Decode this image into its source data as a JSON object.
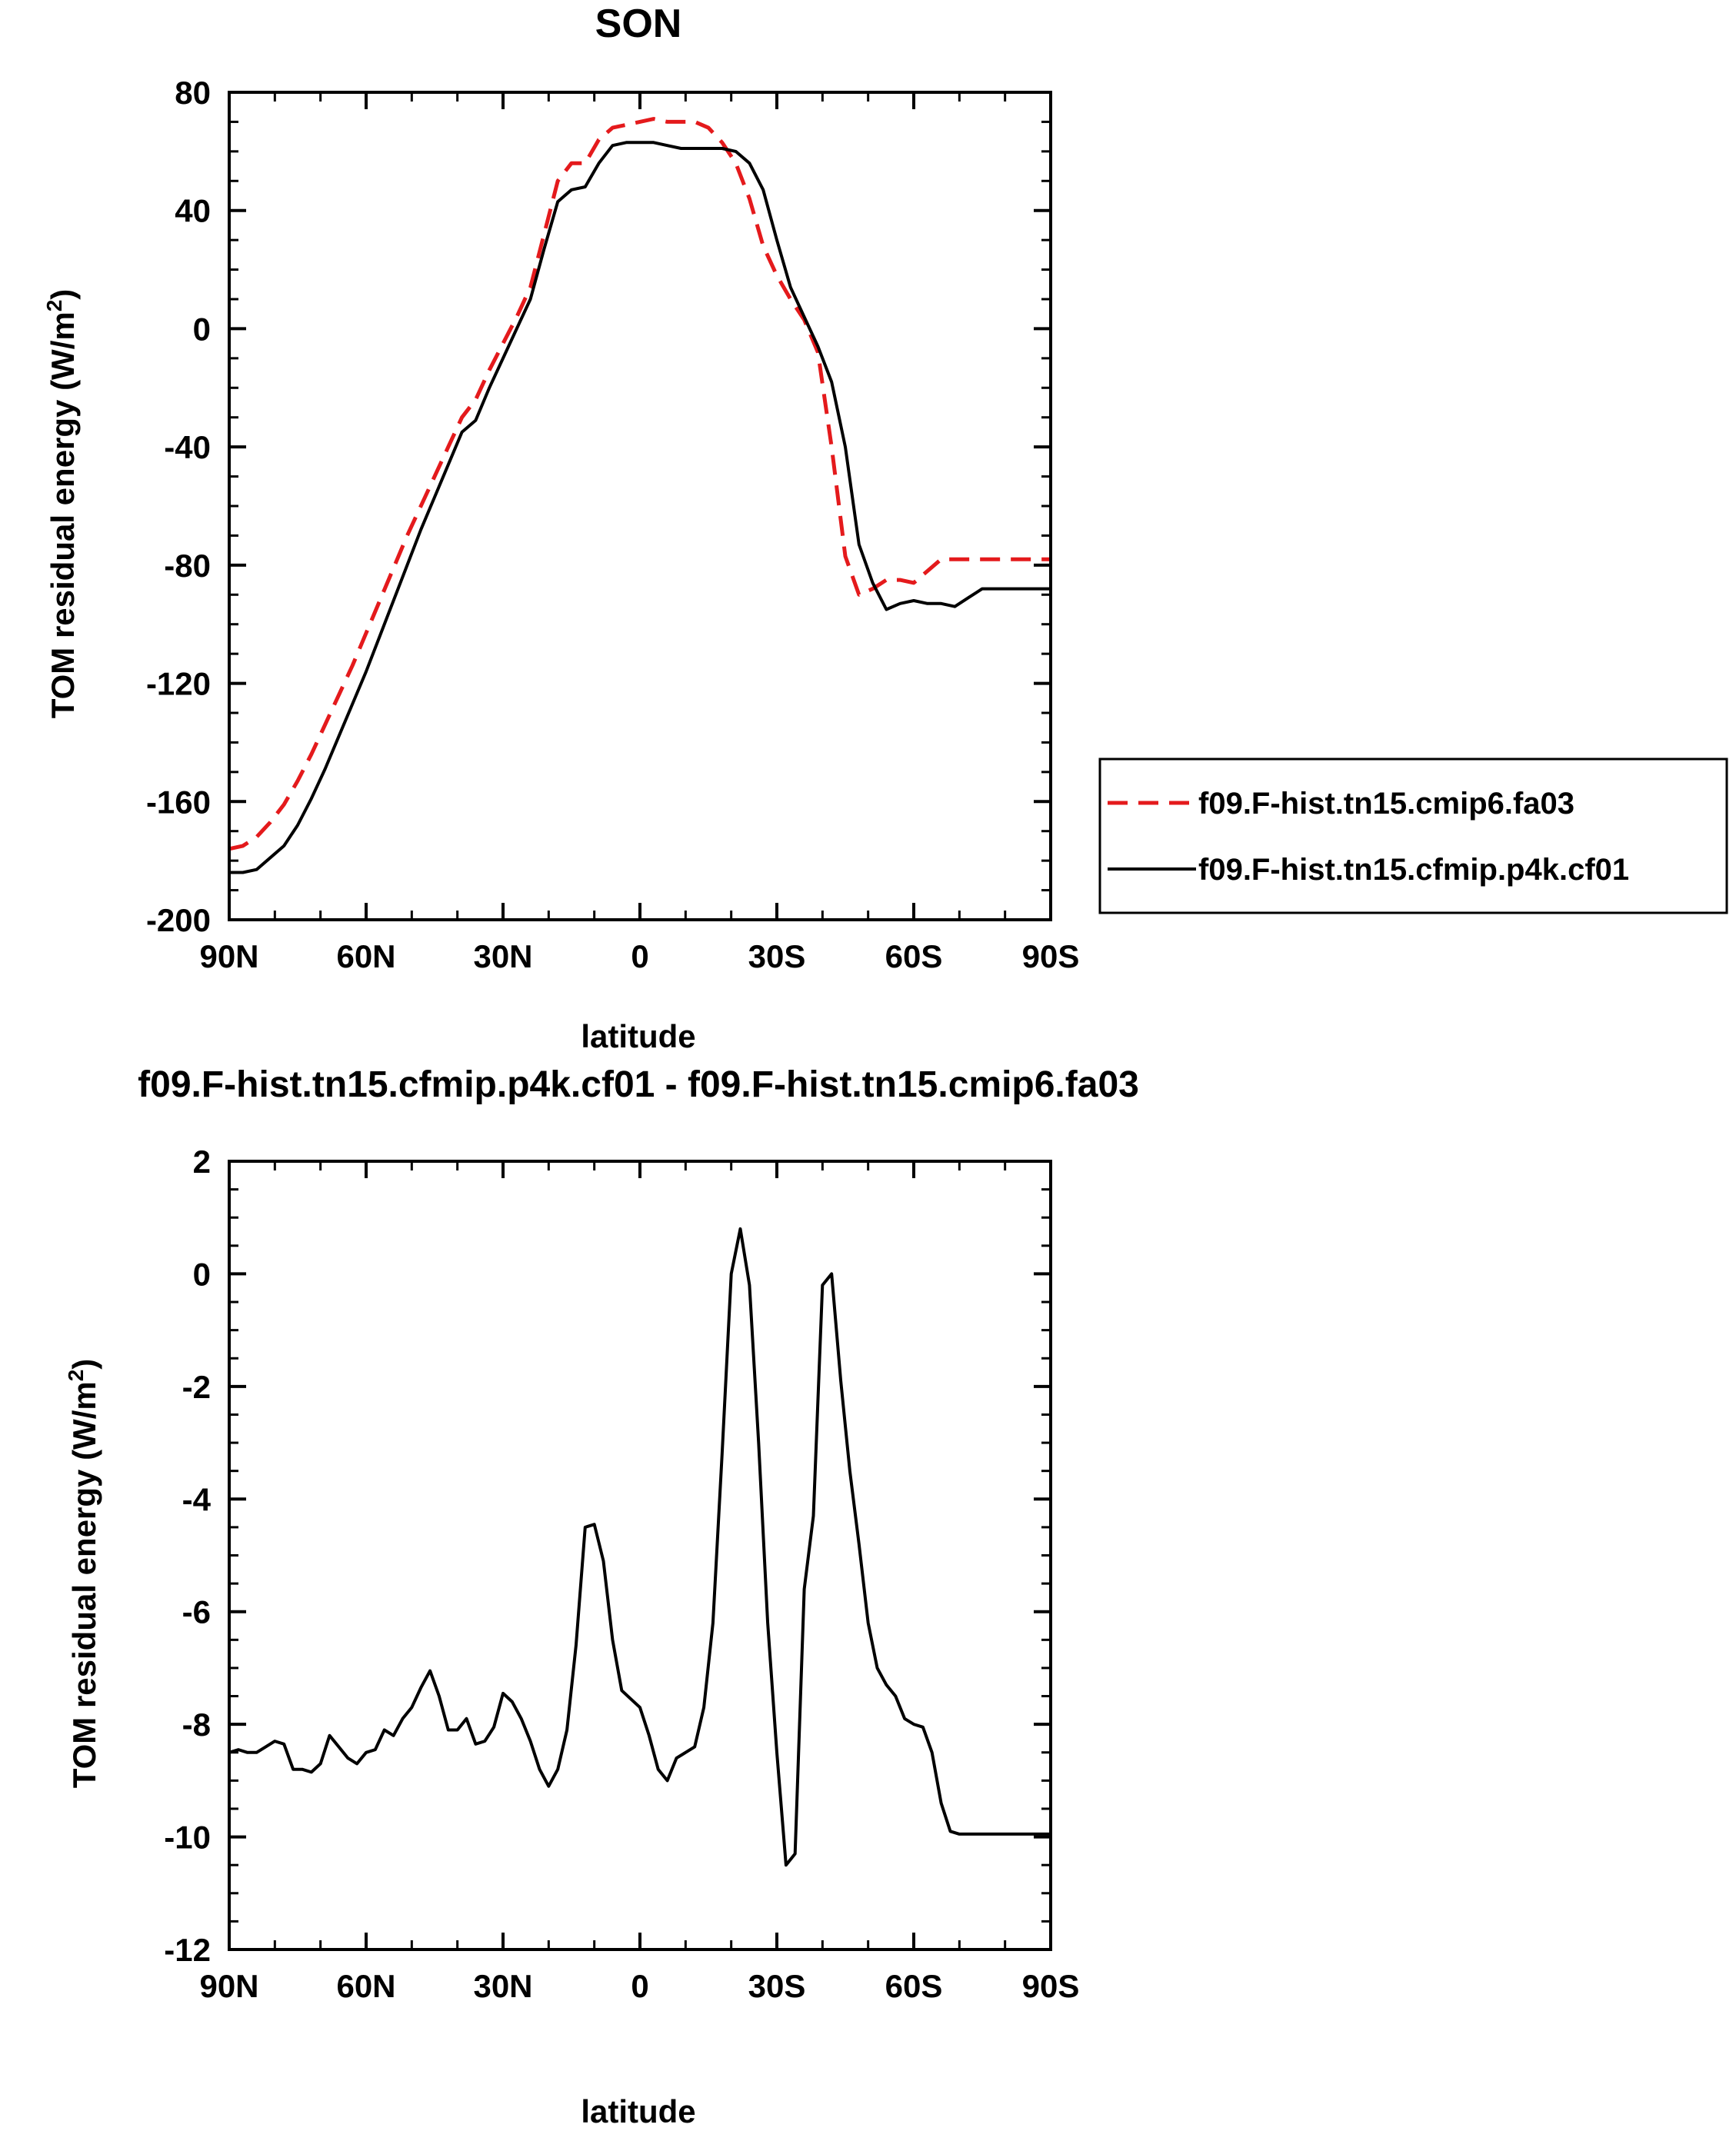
{
  "chart_data": [
    {
      "type": "line",
      "title": "SON",
      "xlabel": "latitude",
      "ylabel": "TOM residual energy (W/m",
      "ylabel_sup": "2",
      "ylabel_close": ")",
      "xlim": [
        90,
        -90
      ],
      "ylim": [
        -200,
        80
      ],
      "xticks": [
        90,
        60,
        30,
        0,
        -30,
        -60,
        -90
      ],
      "xtick_labels": [
        "90N",
        "60N",
        "30N",
        "0",
        "30S",
        "60S",
        "90S"
      ],
      "yticks": [
        80,
        40,
        0,
        -40,
        -80,
        -120,
        -160,
        -200
      ],
      "ytick_labels": [
        "80",
        "40",
        "0",
        "-40",
        "-80",
        "-120",
        "-160",
        "-200"
      ],
      "grid": false,
      "legend_position": "right",
      "series": [
        {
          "name": "f09.F-hist.tn15.cmip6.fa03",
          "color": "#e41a1c",
          "dash": "dashed",
          "x": [
            90,
            87,
            84,
            81,
            78,
            75,
            72,
            69,
            66,
            63,
            60,
            57,
            54,
            51,
            48,
            45,
            42,
            39,
            36,
            33,
            30,
            27,
            24,
            21,
            18,
            15,
            12,
            9,
            6,
            3,
            0,
            -3,
            -6,
            -9,
            -12,
            -15,
            -18,
            -21,
            -24,
            -27,
            -30,
            -33,
            -36,
            -39,
            -42,
            -45,
            -48,
            -51,
            -54,
            -57,
            -60,
            -63,
            -66,
            -69,
            -72,
            -75,
            -78,
            -81,
            -84,
            -87,
            -90
          ],
          "y": [
            -176,
            -175,
            -172,
            -167,
            -161,
            -153,
            -144,
            -134,
            -124,
            -114,
            -103,
            -92,
            -81,
            -70,
            -60,
            -50,
            -40,
            -30,
            -24,
            -14,
            -5,
            4,
            14,
            32,
            50,
            56,
            56,
            64,
            68,
            69,
            70,
            71,
            70,
            70,
            70,
            68,
            63,
            56,
            44,
            28,
            18,
            10,
            3,
            -8,
            -40,
            -77,
            -90,
            -88,
            -85,
            -85,
            -86,
            -82,
            -78,
            -78,
            -78,
            -78,
            -78,
            -78,
            -78,
            -78,
            -78
          ]
        },
        {
          "name": "f09.F-hist.tn15.cfmip.p4k.cf01",
          "color": "#000000",
          "dash": "solid",
          "x": [
            90,
            87,
            84,
            81,
            78,
            75,
            72,
            69,
            66,
            63,
            60,
            57,
            54,
            51,
            48,
            45,
            42,
            39,
            36,
            33,
            30,
            27,
            24,
            21,
            18,
            15,
            12,
            9,
            6,
            3,
            0,
            -3,
            -6,
            -9,
            -12,
            -15,
            -18,
            -21,
            -24,
            -27,
            -30,
            -33,
            -36,
            -39,
            -42,
            -45,
            -48,
            -51,
            -54,
            -57,
            -60,
            -63,
            -66,
            -69,
            -72,
            -75,
            -78,
            -81,
            -84,
            -87,
            -90
          ],
          "y": [
            -184,
            -184,
            -183,
            -179,
            -175,
            -168,
            -159,
            -149,
            -138,
            -127,
            -116,
            -104,
            -92,
            -80,
            -68,
            -57,
            -46,
            -35,
            -31,
            -20,
            -10,
            0,
            10,
            27,
            43,
            47,
            48,
            56,
            62,
            63,
            63,
            63,
            62,
            61,
            61,
            61,
            61,
            60,
            56,
            47,
            30,
            14,
            4,
            -6,
            -18,
            -40,
            -73,
            -86,
            -95,
            -93,
            -92,
            -93,
            -93,
            -94,
            -91,
            -88,
            -88,
            -88,
            -88,
            -88,
            -88
          ]
        }
      ]
    },
    {
      "type": "line",
      "title": "f09.F-hist.tn15.cfmip.p4k.cf01 - f09.F-hist.tn15.cmip6.fa03",
      "xlabel": "latitude",
      "ylabel": "TOM residual energy (W/m",
      "ylabel_sup": "2",
      "ylabel_close": ")",
      "xlim": [
        90,
        -90
      ],
      "ylim": [
        -12,
        2
      ],
      "xticks": [
        90,
        60,
        30,
        0,
        -30,
        -60,
        -90
      ],
      "xtick_labels": [
        "90N",
        "60N",
        "30N",
        "0",
        "30S",
        "60S",
        "90S"
      ],
      "yticks": [
        2,
        0,
        -2,
        -4,
        -6,
        -8,
        -10,
        -12
      ],
      "ytick_labels": [
        "2",
        "0",
        "-2",
        "-4",
        "-6",
        "-8",
        "-10",
        "-12"
      ],
      "grid": false,
      "series": [
        {
          "color": "#000000",
          "dash": "solid",
          "x": [
            90,
            88,
            86,
            84,
            82,
            80,
            78,
            76,
            74,
            72,
            70,
            68,
            66,
            64,
            62,
            60,
            58,
            56,
            54,
            52,
            50,
            48,
            46,
            44,
            42,
            40,
            38,
            36,
            34,
            32,
            30,
            28,
            26,
            24,
            22,
            20,
            18,
            16,
            14,
            12,
            10,
            8,
            6,
            4,
            2,
            0,
            -2,
            -4,
            -6,
            -8,
            -10,
            -12,
            -14,
            -16,
            -18,
            -20,
            -22,
            -24,
            -26,
            -28,
            -30,
            -32,
            -34,
            -36,
            -38,
            -40,
            -42,
            -44,
            -46,
            -48,
            -50,
            -52,
            -54,
            -56,
            -58,
            -60,
            -62,
            -64,
            -66,
            -68,
            -70,
            -72,
            -74,
            -76,
            -78,
            -80,
            -82,
            -84,
            -86,
            -88,
            -90
          ],
          "y": [
            -8.5,
            -8.45,
            -8.5,
            -8.5,
            -8.4,
            -8.3,
            -8.35,
            -8.8,
            -8.8,
            -8.85,
            -8.7,
            -8.2,
            -8.4,
            -8.6,
            -8.7,
            -8.5,
            -8.45,
            -8.1,
            -8.2,
            -7.9,
            -7.7,
            -7.35,
            -7.05,
            -7.5,
            -8.1,
            -8.1,
            -7.9,
            -8.35,
            -8.3,
            -8.05,
            -7.45,
            -7.6,
            -7.9,
            -8.3,
            -8.8,
            -9.1,
            -8.8,
            -8.1,
            -6.6,
            -4.5,
            -4.45,
            -5.1,
            -6.5,
            -7.4,
            -7.55,
            -7.7,
            -8.2,
            -8.8,
            -9.0,
            -8.6,
            -8.5,
            -8.4,
            -7.7,
            -6.2,
            -3.2,
            0.0,
            0.8,
            -0.2,
            -3.0,
            -6.2,
            -8.5,
            -10.5,
            -10.3,
            -5.6,
            -4.3,
            -0.2,
            0.0,
            -1.9,
            -3.5,
            -4.8,
            -6.2,
            -7.0,
            -7.3,
            -7.5,
            -7.9,
            -8.0,
            -8.05,
            -8.5,
            -9.4,
            -9.9,
            -9.95,
            -9.95,
            -9.95,
            -9.95,
            -9.95,
            -9.95,
            -9.95,
            -9.95,
            -9.95,
            -9.95,
            -9.95
          ]
        }
      ]
    }
  ]
}
